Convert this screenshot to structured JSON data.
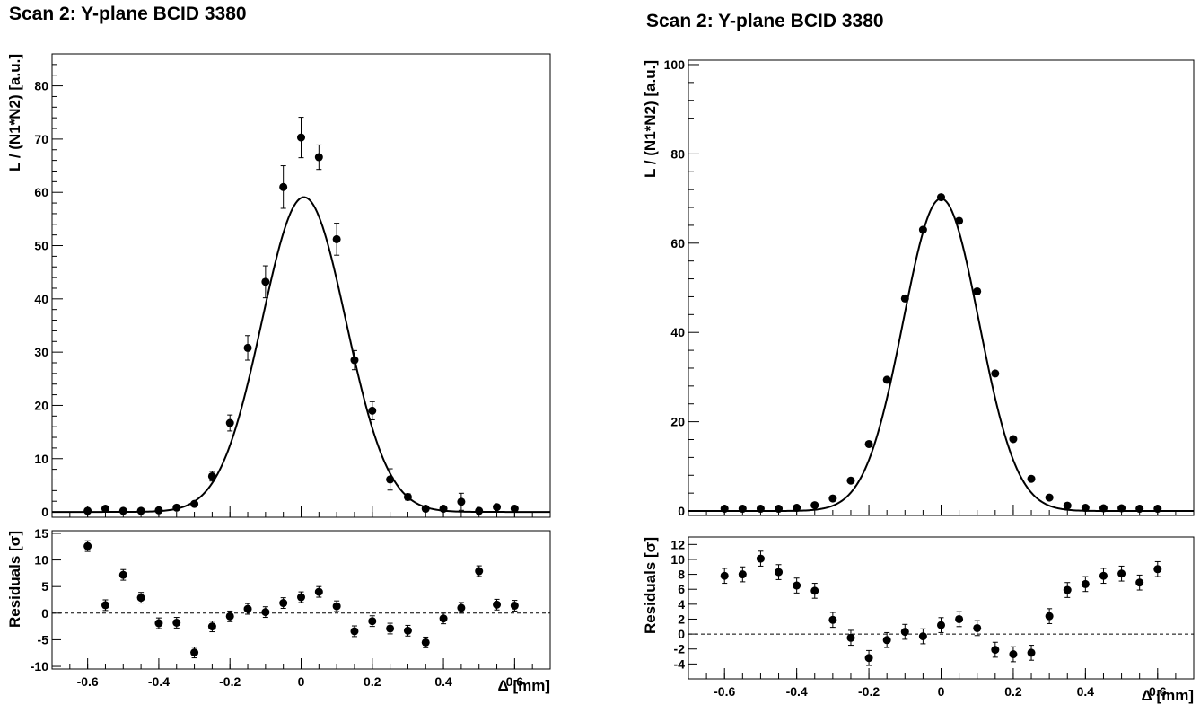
{
  "chart_data": [
    {
      "type": "scatter",
      "title": "Scan 2: Y-plane BCID 3380",
      "xlabel": "Δ [mm]",
      "ylabel": "L / (N1*N2) [a.u.]",
      "xlim": [
        -0.7,
        0.7
      ],
      "ylim": [
        -1,
        86
      ],
      "xticks": [
        -0.6,
        -0.4,
        -0.2,
        0,
        0.2,
        0.4,
        0.6
      ],
      "yticks": [
        0,
        10,
        20,
        30,
        40,
        50,
        60,
        70,
        80
      ],
      "grid": false,
      "series": [
        {
          "x": [
            -0.6,
            -0.55,
            -0.5,
            -0.45,
            -0.4,
            -0.35,
            -0.3,
            -0.25,
            -0.2,
            -0.15,
            -0.1,
            -0.05,
            0.0,
            0.05,
            0.1,
            0.15,
            0.2,
            0.25,
            0.3,
            0.35,
            0.4,
            0.45,
            0.5,
            0.55,
            0.6
          ],
          "y": [
            0.2,
            0.6,
            0.2,
            0.2,
            0.3,
            0.8,
            1.5,
            6.7,
            16.7,
            30.8,
            43.2,
            61.0,
            70.3,
            66.6,
            51.2,
            28.5,
            19.0,
            6.1,
            2.8,
            0.6,
            0.6,
            1.9,
            0.2,
            0.9,
            0.6
          ],
          "yerr": [
            0.1,
            0.2,
            0.1,
            0.1,
            0.2,
            0.3,
            0.4,
            0.9,
            1.5,
            2.3,
            3.0,
            4.0,
            3.8,
            2.3,
            3.0,
            1.8,
            1.7,
            2.0,
            0.6,
            0.3,
            0.4,
            1.6,
            0.1,
            0.3,
            0.2
          ]
        }
      ],
      "fit": {
        "function": "gaussian",
        "amplitude": 59.1,
        "mean": 0.008,
        "sigma": 0.118
      },
      "residuals": {
        "ylabel": "Residuals [σ]",
        "ylim": [
          -10.5,
          15.5
        ],
        "yticks": [
          -10,
          -5,
          0,
          5,
          10,
          15
        ],
        "y": [
          12.6,
          1.5,
          7.2,
          2.9,
          -1.9,
          -1.8,
          -7.4,
          -2.5,
          -0.6,
          0.8,
          0.2,
          1.9,
          3.0,
          4.0,
          1.3,
          -3.4,
          -1.5,
          -2.9,
          -3.3,
          -5.5,
          -1.0,
          1.0,
          7.9,
          1.6,
          1.4
        ],
        "yerr": [
          1.0,
          1.0,
          1.0,
          1.0,
          1.0,
          1.0,
          1.0,
          1.0,
          1.0,
          1.0,
          1.0,
          1.0,
          1.0,
          1.0,
          1.0,
          1.0,
          1.0,
          1.0,
          1.0,
          1.0,
          1.0,
          1.0,
          1.0,
          1.0,
          1.0
        ],
        "reference_line": 0
      }
    },
    {
      "type": "scatter",
      "title": "Scan 2: Y-plane BCID 3380",
      "xlabel": "Δ [mm]",
      "ylabel": "L / (N1*N2) [a.u.]",
      "xlim": [
        -0.7,
        0.7
      ],
      "ylim": [
        -1,
        101
      ],
      "xticks": [
        -0.6,
        -0.4,
        -0.2,
        0,
        0.2,
        0.4,
        0.6
      ],
      "yticks": [
        0,
        20,
        40,
        60,
        80,
        100
      ],
      "grid": false,
      "series": [
        {
          "x": [
            -0.6,
            -0.55,
            -0.5,
            -0.45,
            -0.4,
            -0.35,
            -0.3,
            -0.25,
            -0.2,
            -0.15,
            -0.1,
            -0.05,
            0.0,
            0.05,
            0.1,
            0.15,
            0.2,
            0.25,
            0.3,
            0.35,
            0.4,
            0.45,
            0.5,
            0.55,
            0.6
          ],
          "y": [
            0.5,
            0.5,
            0.5,
            0.5,
            0.7,
            1.3,
            2.8,
            6.8,
            15.0,
            29.4,
            47.6,
            63.0,
            70.3,
            65.0,
            49.2,
            30.8,
            16.1,
            7.2,
            3.0,
            1.2,
            0.7,
            0.6,
            0.6,
            0.5,
            0.5
          ],
          "yerr": [
            0.1,
            0.1,
            0.1,
            0.1,
            0.1,
            0.2,
            0.6,
            0.3,
            0.3,
            0.3,
            0.3,
            0.3,
            0.3,
            0.3,
            0.3,
            0.3,
            0.3,
            0.3,
            0.5,
            0.2,
            0.1,
            0.1,
            0.1,
            0.1,
            0.1
          ]
        }
      ],
      "fit": {
        "function": "gaussian",
        "amplitude": 70.0,
        "mean": 0.0,
        "sigma": 0.105
      },
      "residuals": {
        "ylabel": "Residuals [σ]",
        "ylim": [
          -6,
          13
        ],
        "yticks": [
          -4,
          -2,
          0,
          2,
          4,
          6,
          8,
          10,
          12
        ],
        "y": [
          7.8,
          8.0,
          10.1,
          8.3,
          6.5,
          5.8,
          1.9,
          -0.5,
          -3.2,
          -0.8,
          0.3,
          -0.3,
          1.2,
          2.0,
          0.8,
          -2.1,
          -2.7,
          -2.5,
          2.4,
          5.9,
          6.7,
          7.8,
          8.1,
          6.9,
          8.7
        ],
        "yerr": [
          1.0,
          1.0,
          1.0,
          1.0,
          1.0,
          1.0,
          1.0,
          1.0,
          1.0,
          1.0,
          1.0,
          1.0,
          1.0,
          1.0,
          1.0,
          1.0,
          1.0,
          1.0,
          1.0,
          1.0,
          1.0,
          1.0,
          1.0,
          1.0,
          1.0
        ],
        "reference_line": 0
      }
    }
  ]
}
